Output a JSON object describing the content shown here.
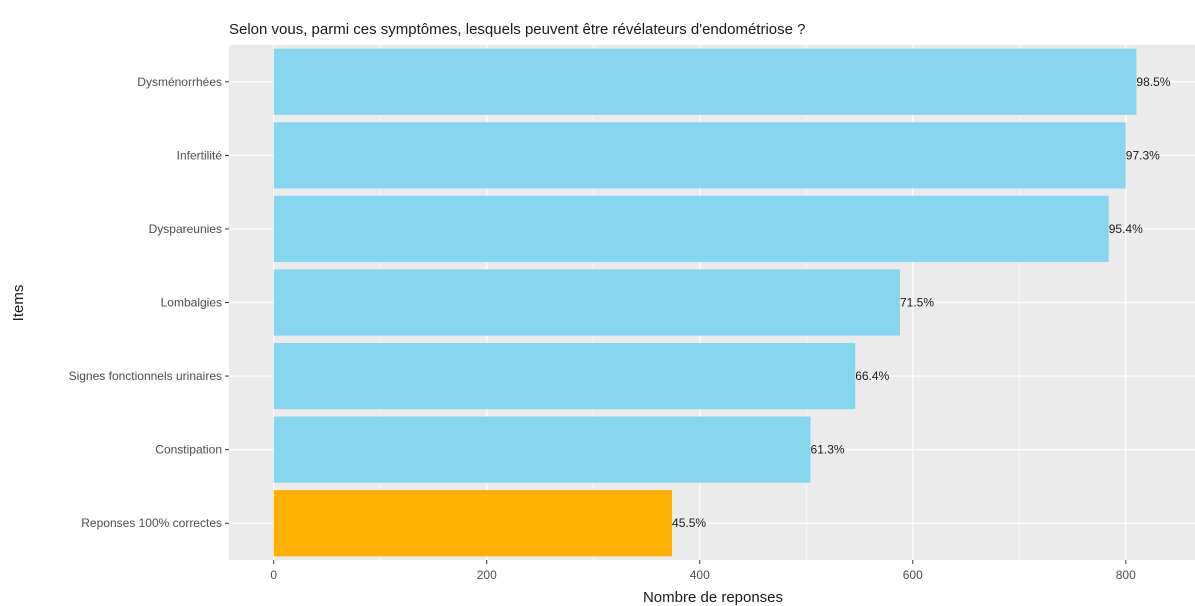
{
  "chart_data": {
    "type": "bar",
    "orientation": "horizontal",
    "title": "Selon vous, parmi ces symptômes, lesquels peuvent être révélateurs d'endométriose ?",
    "xlabel": "Nombre de reponses",
    "ylabel": "Items",
    "xlim": [
      -42,
      865
    ],
    "xticks": [
      0,
      200,
      400,
      600,
      800
    ],
    "grid": true,
    "legend": "none",
    "colors": {
      "panel_background": "#EBEBEB",
      "gridline": "#FFFFFF",
      "bar_default": "#87D6F0",
      "bar_highlight": "#FFB000"
    },
    "categories": [
      "Dysménorrhées",
      "Infertilité",
      "Dyspareunies",
      "Lombalgies",
      "Signes fonctionnels urinaires",
      "Constipation",
      "Reponses 100% correctes"
    ],
    "values": [
      810,
      800,
      784,
      588,
      546,
      504,
      374
    ],
    "labels": [
      "98.5%",
      "97.3%",
      "95.4%",
      "71.5%",
      "66.4%",
      "61.3%",
      "45.5%"
    ],
    "highlight": [
      "Reponses 100% correctes"
    ]
  }
}
